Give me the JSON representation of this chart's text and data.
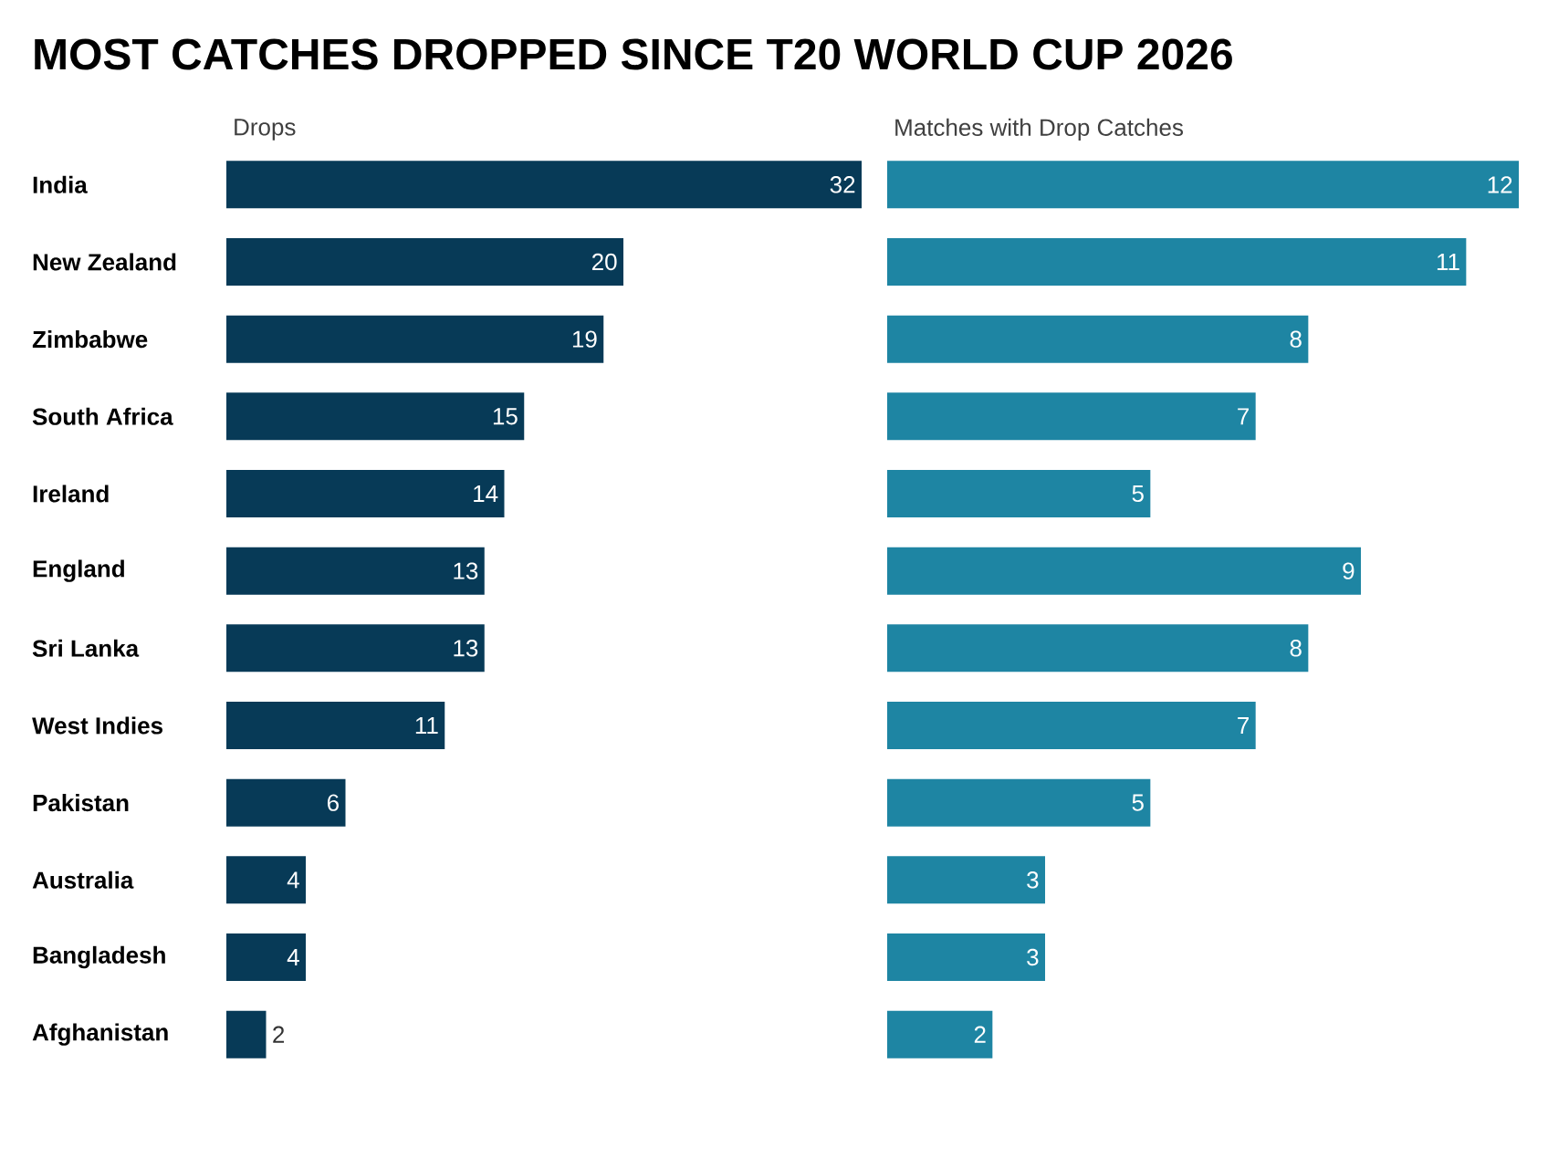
{
  "chart_data": [
    {
      "type": "bar",
      "orientation": "horizontal",
      "title": "MOST CATCHES DROPPED SINCE T20 WORLD CUP 2026",
      "subtitle": "Drops",
      "categories": [
        "India",
        "New Zealand",
        "Zimbabwe",
        "South Africa",
        "Ireland",
        "England",
        "Sri Lanka",
        "West Indies",
        "Pakistan",
        "Australia",
        "Bangladesh",
        "Afghanistan"
      ],
      "values": [
        32,
        20,
        19,
        15,
        14,
        13,
        13,
        11,
        6,
        4,
        4,
        2
      ],
      "color": "#073a57",
      "data_labels": true,
      "tick_labels": "y"
    },
    {
      "type": "bar",
      "orientation": "horizontal",
      "subtitle": "Matches with Drop Catches",
      "categories": [
        null,
        null,
        null,
        null,
        null,
        null,
        null,
        null,
        null,
        null,
        null,
        null
      ],
      "values": [
        12,
        11,
        8,
        7,
        5,
        9,
        8,
        7,
        5,
        3,
        3,
        2
      ],
      "color": "#1e85a3",
      "data_labels": true,
      "tick_labels": false
    }
  ]
}
